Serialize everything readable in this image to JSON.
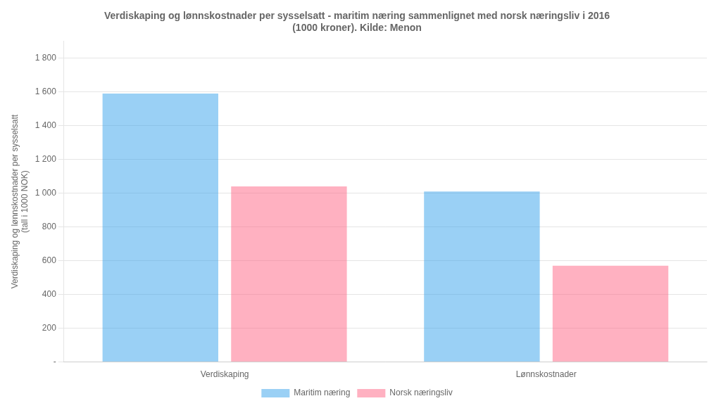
{
  "chart_data": {
    "type": "bar",
    "title": "Verdiskaping og lønnskostnader per sysselsatt - maritim næring sammenlignet med norsk næringsliv i 2016\n(1000 kroner). Kilde: Menon",
    "ylabel": "Verdiskaping og lønnskostnader per sysselsatt\n(tall i 1000 NOK)",
    "categories": [
      "Verdiskaping",
      "Lønnskostnader"
    ],
    "series": [
      {
        "name": "Maritim næring",
        "values": [
          1590,
          1010
        ]
      },
      {
        "name": "Norsk næringsliv",
        "values": [
          1040,
          570
        ]
      }
    ],
    "ylim": [
      0,
      1900
    ],
    "yticks": [
      {
        "value": 0,
        "label": "-"
      },
      200,
      400,
      600,
      800,
      {
        "value": 1000,
        "label": "1 000"
      },
      {
        "value": 1200,
        "label": "1 200"
      },
      {
        "value": 1400,
        "label": "1 400"
      },
      {
        "value": 1600,
        "label": "1 600"
      },
      {
        "value": 1800,
        "label": "1 800"
      }
    ],
    "grid": true,
    "legend": "bottom"
  }
}
